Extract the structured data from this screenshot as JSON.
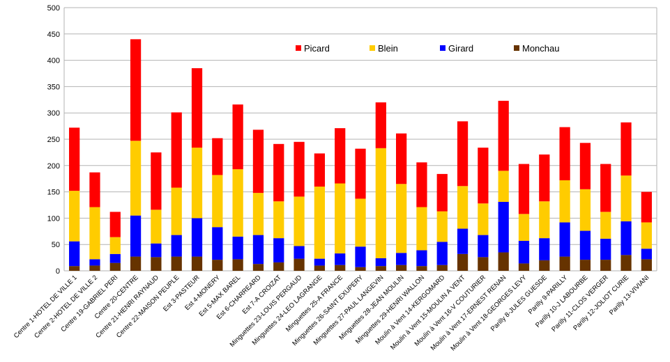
{
  "chart_data": {
    "type": "bar",
    "stacked": true,
    "categories": [
      "Centre 1-HOTEL DE VILLE 1",
      "Centre 2-HOTEL DE VILLE 2",
      "Centre 19-GABRIEL PERI",
      "Centre 20-CENTRE",
      "Centre 21-HENRI RAYNAUD",
      "Centre 22-MAISON PEUPLE",
      "Est 3-PASTEUR",
      "Est 4-MONERY",
      "Est 5-MAX BAREL",
      "Est 6-CHARREARD",
      "Est 7-A CROIZAT",
      "Minguettes 23-LOUIS PERGAUD",
      "Minguettes 24-LEO LAGRANGE",
      "Minguettes 25-A FRANCE",
      "Minguettes 26-SAINT EXUPERY",
      "Minguettes 27-PAUL LANGEVIN",
      "Minguettes 28-JEAN MOULIN",
      "Minguettes 29-HENRI WALLON",
      "Moulin à Vent 14-KERGOMARD",
      "Moulin à Vent 15-MOULIN A VENT",
      "Moulin à Vent 16-V COUTURIER",
      "Moulin à Vent 17-ERNEST RENAN",
      "Moulin à Vent 18-GEORGES LEVY",
      "Parilly 8-JULES GUESDE",
      "Parilly 9-PARILLY",
      "Parilly 10-J LABOURBE",
      "Parilly 11-CLOS VERGER",
      "Parilly 12-JOLIOT CURIE",
      "Parilly 13-VIVIANI"
    ],
    "series": [
      {
        "name": "Monchau",
        "color": "#663300",
        "values": [
          9,
          10,
          15,
          27,
          26,
          27,
          27,
          21,
          22,
          13,
          16,
          23,
          10,
          11,
          7,
          9,
          11,
          9,
          11,
          32,
          26,
          35,
          14,
          20,
          27,
          21,
          21,
          30,
          22
        ]
      },
      {
        "name": "Girard",
        "color": "#0000ff",
        "values": [
          47,
          12,
          17,
          78,
          26,
          41,
          73,
          62,
          43,
          55,
          46,
          24,
          13,
          22,
          39,
          15,
          23,
          30,
          44,
          48,
          42,
          96,
          43,
          42,
          65,
          55,
          40,
          64,
          20
        ]
      },
      {
        "name": "Blein",
        "color": "#ffcc00",
        "values": [
          96,
          99,
          32,
          142,
          64,
          90,
          134,
          99,
          128,
          80,
          70,
          94,
          137,
          133,
          91,
          209,
          131,
          82,
          58,
          81,
          60,
          59,
          51,
          70,
          80,
          79,
          51,
          87,
          50
        ]
      },
      {
        "name": "Picard",
        "color": "#ff0000",
        "values": [
          120,
          66,
          48,
          193,
          109,
          143,
          151,
          70,
          123,
          120,
          109,
          104,
          63,
          105,
          95,
          87,
          96,
          85,
          71,
          123,
          106,
          133,
          95,
          89,
          101,
          88,
          91,
          101,
          58
        ]
      }
    ],
    "legend_order": [
      "Picard",
      "Blein",
      "Girard",
      "Monchau"
    ],
    "ylim": [
      0,
      500
    ],
    "yticks": [
      0,
      50,
      100,
      150,
      200,
      250,
      300,
      350,
      400,
      450,
      500
    ],
    "grid": true,
    "legend_position": "top-center",
    "title": "",
    "xlabel": "",
    "ylabel": ""
  }
}
